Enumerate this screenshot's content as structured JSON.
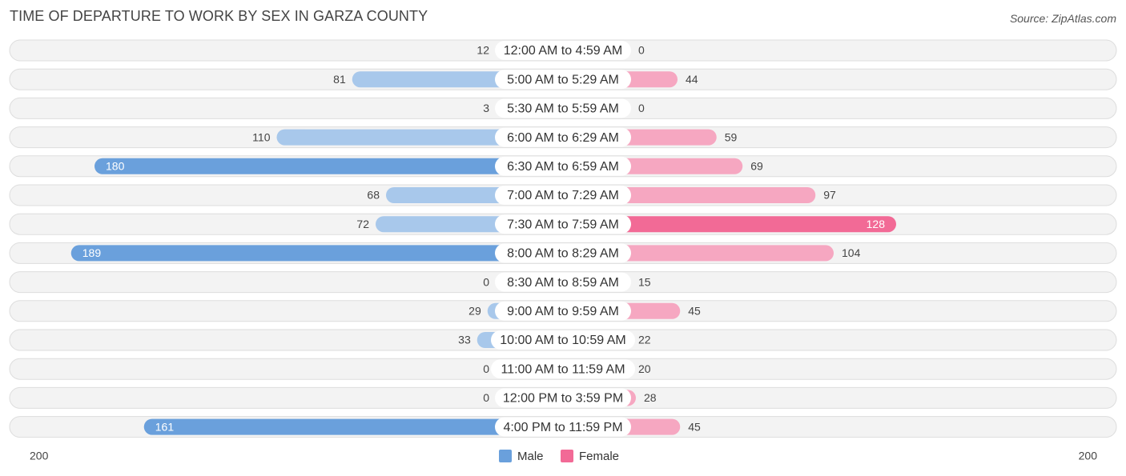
{
  "title": "TIME OF DEPARTURE TO WORK BY SEX IN GARZA COUNTY",
  "source": "Source: ZipAtlas.com",
  "colors": {
    "male": "#6aa0dc",
    "male_light": "#a8c8eb",
    "female": "#f26a96",
    "female_light": "#f6a7c1"
  },
  "chart_data": {
    "type": "bar",
    "orientation": "horizontal-diverging",
    "title": "TIME OF DEPARTURE TO WORK BY SEX IN GARZA COUNTY",
    "categories": [
      "12:00 AM to 4:59 AM",
      "5:00 AM to 5:29 AM",
      "5:30 AM to 5:59 AM",
      "6:00 AM to 6:29 AM",
      "6:30 AM to 6:59 AM",
      "7:00 AM to 7:29 AM",
      "7:30 AM to 7:59 AM",
      "8:00 AM to 8:29 AM",
      "8:30 AM to 8:59 AM",
      "9:00 AM to 9:59 AM",
      "10:00 AM to 10:59 AM",
      "11:00 AM to 11:59 AM",
      "12:00 PM to 3:59 PM",
      "4:00 PM to 11:59 PM"
    ],
    "series": [
      {
        "name": "Male",
        "values": [
          12,
          81,
          3,
          110,
          180,
          68,
          72,
          189,
          0,
          29,
          33,
          0,
          0,
          161
        ]
      },
      {
        "name": "Female",
        "values": [
          0,
          44,
          0,
          59,
          69,
          97,
          128,
          104,
          15,
          45,
          22,
          20,
          28,
          45
        ]
      }
    ],
    "axis": {
      "left_label": "200",
      "right_label": "200",
      "max": 200
    },
    "legend": [
      "Male",
      "Female"
    ]
  }
}
